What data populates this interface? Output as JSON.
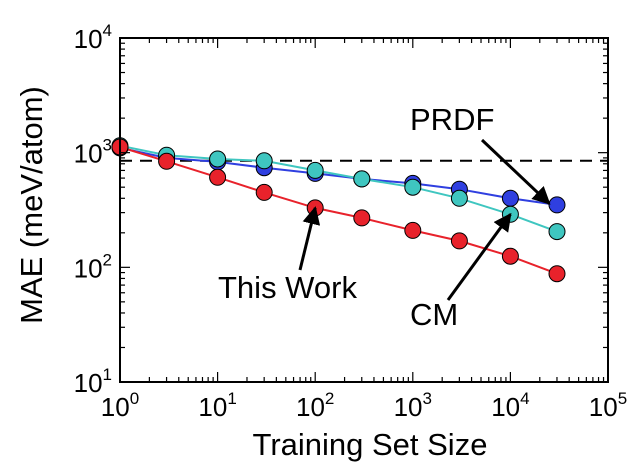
{
  "chart_data": {
    "type": "line",
    "title": "",
    "xlabel": "Training Set Size",
    "ylabel": "MAE (meV/atom)",
    "x_scale": "log",
    "y_scale": "log",
    "xlim": [
      1,
      100000
    ],
    "ylim": [
      10,
      10000
    ],
    "x_ticks": [
      {
        "base": "10",
        "exp": "0",
        "value": 1
      },
      {
        "base": "10",
        "exp": "1",
        "value": 10
      },
      {
        "base": "10",
        "exp": "2",
        "value": 100
      },
      {
        "base": "10",
        "exp": "3",
        "value": 1000
      },
      {
        "base": "10",
        "exp": "4",
        "value": 10000
      },
      {
        "base": "10",
        "exp": "5",
        "value": 100000
      }
    ],
    "y_ticks": [
      {
        "base": "10",
        "exp": "1",
        "value": 10
      },
      {
        "base": "10",
        "exp": "2",
        "value": 100
      },
      {
        "base": "10",
        "exp": "3",
        "value": 1000
      },
      {
        "base": "10",
        "exp": "4",
        "value": 10000
      }
    ],
    "grid": false,
    "reference_line": {
      "y": 850,
      "style": "dashed",
      "color": "#000000"
    },
    "series": [
      {
        "color": "#2f3fe0",
        "x": [
          1,
          3,
          10,
          30,
          100,
          300,
          1000,
          3000,
          10000,
          30000
        ],
        "y": [
          1100,
          900,
          830,
          740,
          660,
          590,
          540,
          480,
          400,
          350
        ]
      },
      {
        "color": "#3fc6c0",
        "x": [
          1,
          3,
          10,
          30,
          100,
          300,
          1000,
          3000,
          10000,
          30000
        ],
        "y": [
          1150,
          950,
          880,
          850,
          700,
          590,
          500,
          400,
          290,
          205
        ]
      },
      {
        "color": "#e8222b",
        "x": [
          1,
          3,
          10,
          30,
          100,
          300,
          1000,
          3000,
          10000,
          30000
        ],
        "y": [
          1120,
          840,
          610,
          450,
          330,
          270,
          210,
          170,
          125,
          88
        ]
      }
    ],
    "annotations": [
      {
        "text": "PRDF",
        "arrow_to": {
          "x": 25000,
          "y": 360
        }
      },
      {
        "text": "This Work",
        "arrow_to": {
          "x": 100,
          "y": 330
        }
      },
      {
        "text": "CM",
        "arrow_to": {
          "x": 10000,
          "y": 290
        }
      }
    ]
  }
}
